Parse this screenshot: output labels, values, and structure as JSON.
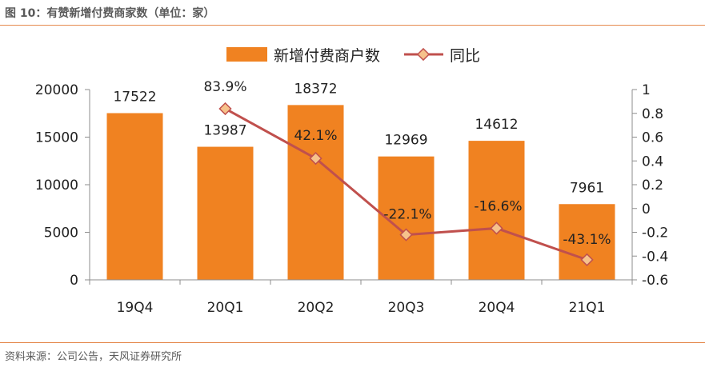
{
  "title": "图 10：有赞新增付费商家数（单位：家）",
  "source": "资料来源：公司公告，天风证券研究所",
  "colors": {
    "bar": "#f08221",
    "line": "#c0504d",
    "marker_fill": "#f6c28b",
    "rule": "#e58a4e"
  },
  "chart_data": {
    "type": "bar",
    "categories": [
      "19Q4",
      "20Q1",
      "20Q2",
      "20Q3",
      "20Q4",
      "21Q1"
    ],
    "series": [
      {
        "name": "新增付费商户数",
        "type": "bar",
        "axis": "left",
        "values": [
          17522,
          13987,
          18372,
          12969,
          14612,
          7961
        ],
        "labels": [
          "17522",
          "13987",
          "18372",
          "12969",
          "14612",
          "7961"
        ]
      },
      {
        "name": "同比",
        "type": "line",
        "axis": "right",
        "values": [
          null,
          0.839,
          0.421,
          -0.221,
          -0.166,
          -0.431
        ],
        "labels": [
          "",
          "83.9%",
          "42.1%",
          "-22.1%",
          "-16.6%",
          "-43.1%"
        ]
      }
    ],
    "y_left": {
      "min": 0,
      "max": 20000,
      "ticks": [
        "0",
        "5000",
        "10000",
        "15000",
        "20000"
      ]
    },
    "y_right": {
      "min": -0.6,
      "max": 1,
      "ticks": [
        "-0.6",
        "-0.4",
        "-0.2",
        "0",
        "0.2",
        "0.4",
        "0.6",
        "0.8",
        "1"
      ]
    },
    "legend": {
      "position": "top-center"
    },
    "grid": false
  }
}
